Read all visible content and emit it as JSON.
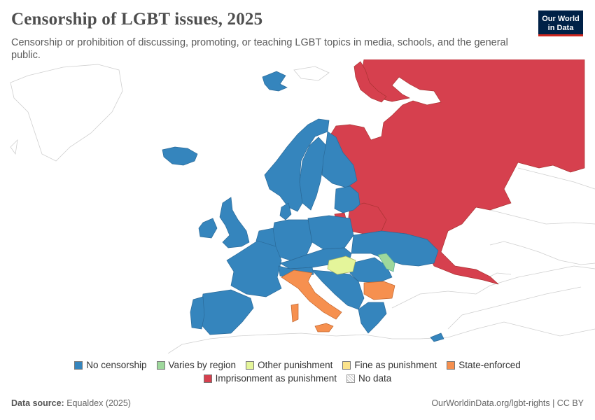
{
  "header": {
    "title": "Censorship of LGBT issues, 2025",
    "subtitle": "Censorship or prohibition of discussing, promoting, or teaching LGBT topics in media, schools, and the general public."
  },
  "logo": {
    "line1": "Our World",
    "line2": "in Data"
  },
  "legend": {
    "row1": [
      {
        "label": "No censorship",
        "color": "#3585bd"
      },
      {
        "label": "Varies by region",
        "color": "#9ed89c"
      },
      {
        "label": "Other punishment",
        "color": "#e4f59a"
      },
      {
        "label": "Fine as punishment",
        "color": "#fbe38c"
      },
      {
        "label": "State-enforced",
        "color": "#f6904f"
      }
    ],
    "row2": [
      {
        "label": "Imprisonment as punishment",
        "color": "#d6404e"
      },
      {
        "label": "No data",
        "color": "hatched"
      }
    ]
  },
  "footer": {
    "source_label": "Data source:",
    "source_value": "Equaldex (2025)",
    "right": "OurWorldinData.org/lgbt-rights | CC BY"
  },
  "colors": {
    "no_censorship": "#3585bd",
    "varies": "#9ed89c",
    "other": "#e4f59a",
    "state_enforced": "#f6904f",
    "imprisonment": "#d6404e",
    "no_data": "#ffffff",
    "border": "#999999"
  },
  "map_regions": [
    {
      "name": "Iceland",
      "category": "No censorship"
    },
    {
      "name": "Norway",
      "category": "No censorship"
    },
    {
      "name": "Sweden",
      "category": "No censorship"
    },
    {
      "name": "Finland",
      "category": "No censorship"
    },
    {
      "name": "Svalbard",
      "category": "No censorship"
    },
    {
      "name": "United Kingdom",
      "category": "No censorship"
    },
    {
      "name": "Ireland",
      "category": "No censorship"
    },
    {
      "name": "Denmark",
      "category": "No censorship"
    },
    {
      "name": "Baltic states",
      "category": "No censorship"
    },
    {
      "name": "Poland",
      "category": "No censorship"
    },
    {
      "name": "Germany",
      "category": "No censorship"
    },
    {
      "name": "France",
      "category": "No censorship"
    },
    {
      "name": "Spain",
      "category": "No censorship"
    },
    {
      "name": "Portugal",
      "category": "No censorship"
    },
    {
      "name": "Benelux",
      "category": "No censorship"
    },
    {
      "name": "Central Europe",
      "category": "No censorship"
    },
    {
      "name": "Ukraine",
      "category": "No censorship"
    },
    {
      "name": "Romania",
      "category": "No censorship"
    },
    {
      "name": "Balkans",
      "category": "No censorship"
    },
    {
      "name": "Greece",
      "category": "No censorship"
    },
    {
      "name": "Cyprus",
      "category": "No censorship"
    },
    {
      "name": "Moldova",
      "category": "Varies by region"
    },
    {
      "name": "Hungary",
      "category": "Other punishment"
    },
    {
      "name": "Italy",
      "category": "State-enforced"
    },
    {
      "name": "Sardinia",
      "category": "State-enforced"
    },
    {
      "name": "Sicily",
      "category": "State-enforced"
    },
    {
      "name": "Bulgaria",
      "category": "State-enforced"
    },
    {
      "name": "Russia",
      "category": "Imprisonment as punishment"
    },
    {
      "name": "Belarus",
      "category": "Imprisonment as punishment"
    },
    {
      "name": "Kaliningrad",
      "category": "Imprisonment as punishment"
    },
    {
      "name": "Novaya Zemlya",
      "category": "Imprisonment as punishment"
    }
  ]
}
